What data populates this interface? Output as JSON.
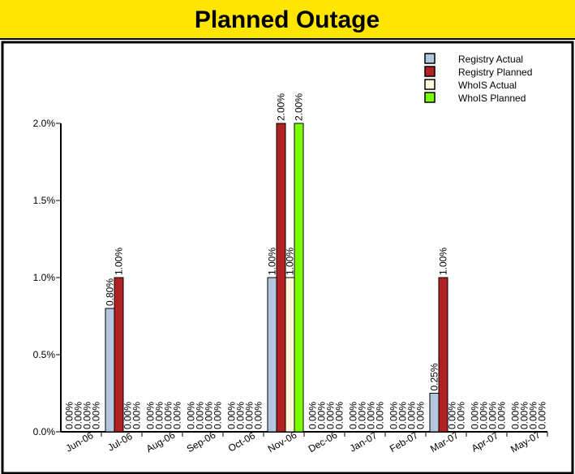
{
  "chart_data": {
    "type": "bar",
    "title": "Planned Outage",
    "categories": [
      "Jun-06",
      "Jul-06",
      "Aug-06",
      "Sep-06",
      "Oct-06",
      "Nov-06",
      "Dec-06",
      "Jan-07",
      "Feb-07",
      "Mar-07",
      "Apr-07",
      "May-07"
    ],
    "series": [
      {
        "name": "Registry Actual",
        "color": "#b4c6e0",
        "values": [
          0,
          0.8,
          0,
          0,
          0,
          1,
          0,
          0,
          0,
          0.25,
          0,
          0
        ],
        "value_labels": [
          "0.00%",
          "0.80%",
          "0.00%",
          "0.00%",
          "0.00%",
          "1.00%",
          "0.00%",
          "0.00%",
          "0.00%",
          "0.25%",
          "0.00%",
          "0.00%"
        ]
      },
      {
        "name": "Registry Planned",
        "color": "#b22222",
        "values": [
          0,
          1,
          0,
          0,
          0,
          2,
          0,
          0,
          0,
          1,
          0,
          0
        ],
        "value_labels": [
          "0.00%",
          "1.00%",
          "0.00%",
          "0.00%",
          "0.00%",
          "2.00%",
          "0.00%",
          "0.00%",
          "0.00%",
          "1.00%",
          "0.00%",
          "0.00%"
        ]
      },
      {
        "name": "WhoIS Actual",
        "color": "#fff8dc",
        "values": [
          0,
          0,
          0,
          0,
          0,
          1,
          0,
          0,
          0,
          0,
          0,
          0
        ],
        "value_labels": [
          "0.00%",
          "0.00%",
          "0.00%",
          "0.00%",
          "0.00%",
          "1.00%",
          "0.00%",
          "0.00%",
          "0.00%",
          "0.00%",
          "0.00%",
          "0.00%"
        ]
      },
      {
        "name": "WhoIS Planned",
        "color": "#7cfc00",
        "values": [
          0,
          0,
          0,
          0,
          0,
          2,
          0,
          0,
          0,
          0,
          0,
          0
        ],
        "value_labels": [
          "0.00%",
          "0.00%",
          "0.00%",
          "0.00%",
          "0.00%",
          "2.00%",
          "0.00%",
          "0.00%",
          "0.00%",
          "0.00%",
          "0.00%",
          "0.00%"
        ]
      }
    ],
    "ylim": [
      0,
      2
    ],
    "yticks": [
      {
        "value": 0,
        "label": "0.0%"
      },
      {
        "value": 0.5,
        "label": "0.5%"
      },
      {
        "value": 1,
        "label": "1.0%"
      },
      {
        "value": 1.5,
        "label": "1.5%"
      },
      {
        "value": 2,
        "label": "2.0%"
      }
    ],
    "grid": false,
    "legend": "top-right"
  }
}
